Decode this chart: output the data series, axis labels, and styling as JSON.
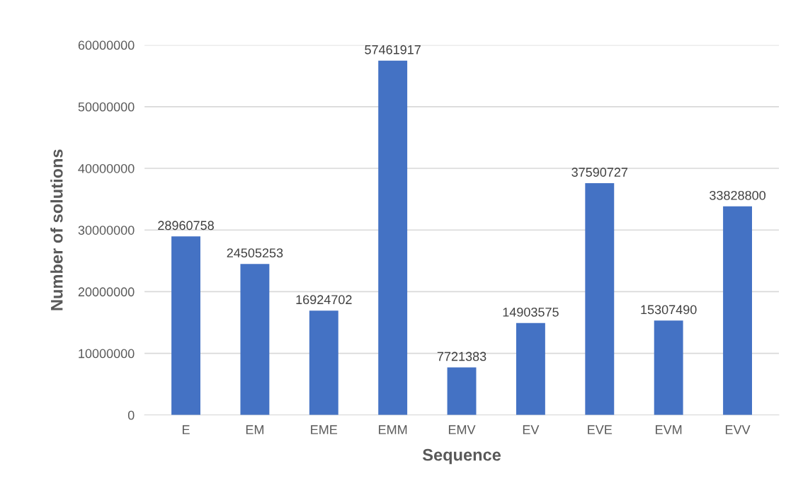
{
  "chart_data": {
    "type": "bar",
    "xlabel": "Sequence",
    "ylabel": "Number of solutions",
    "categories": [
      "E",
      "EM",
      "EME",
      "EMM",
      "EMV",
      "EV",
      "EVE",
      "EVM",
      "EVV"
    ],
    "values": [
      28960758,
      24505253,
      16924702,
      57461917,
      7721383,
      14903575,
      37590727,
      15307490,
      33828800
    ],
    "color": "#4472c4",
    "ylim": [
      0,
      60000000
    ],
    "yticks": [
      0,
      10000000,
      20000000,
      30000000,
      40000000,
      50000000,
      60000000
    ],
    "grid": "y",
    "data_labels": true
  }
}
